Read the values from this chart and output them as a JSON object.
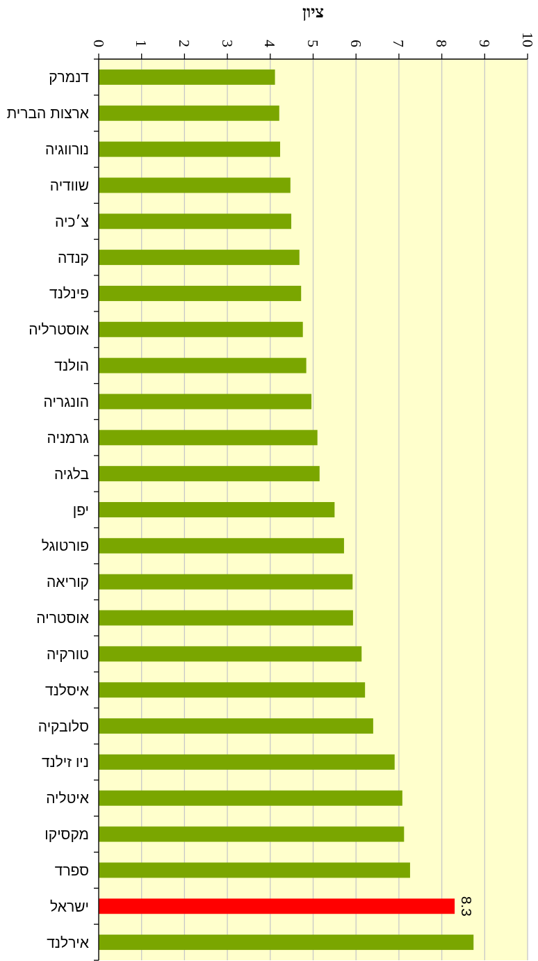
{
  "chart_data": {
    "type": "bar",
    "orientation": "horizontal",
    "xlabel": "ציון",
    "categories": [
      "דנמרק",
      "ארצות הברית",
      "נורווגיה",
      "שוודיה",
      "צ׳כיה",
      "קנדה",
      "פינלנד",
      "אוסטרליה",
      "הולנד",
      "הונגריה",
      "גרמניה",
      "בלגיה",
      "יפן",
      "פורטוגל",
      "קוריאה",
      "אוסטריה",
      "טורקיה",
      "איסלנד",
      "סלובקיה",
      "ניו זילנד",
      "איטליה",
      "מקסיקו",
      "ספרד",
      "ישראל",
      "אירלנד"
    ],
    "values": [
      4.11,
      4.21,
      4.23,
      4.47,
      4.49,
      4.68,
      4.72,
      4.76,
      4.84,
      4.96,
      5.1,
      5.15,
      5.5,
      5.72,
      5.92,
      5.93,
      6.13,
      6.21,
      6.4,
      6.9,
      7.08,
      7.12,
      7.26,
      8.3,
      8.74
    ],
    "colors": [
      "#7aa600",
      "#7aa600",
      "#7aa600",
      "#7aa600",
      "#7aa600",
      "#7aa600",
      "#7aa600",
      "#7aa600",
      "#7aa600",
      "#7aa600",
      "#7aa600",
      "#7aa600",
      "#7aa600",
      "#7aa600",
      "#7aa600",
      "#7aa600",
      "#7aa600",
      "#7aa600",
      "#7aa600",
      "#7aa600",
      "#7aa600",
      "#7aa600",
      "#7aa600",
      "#ff0000",
      "#7aa600"
    ],
    "value_labels": [
      null,
      null,
      null,
      null,
      null,
      null,
      null,
      null,
      null,
      null,
      null,
      null,
      null,
      null,
      null,
      null,
      null,
      null,
      null,
      null,
      null,
      null,
      null,
      "8.3",
      null
    ],
    "xlim": [
      0,
      10
    ],
    "xticks": [
      0,
      1,
      2,
      3,
      4,
      5,
      6,
      7,
      8,
      9,
      10
    ],
    "grid": "x"
  }
}
